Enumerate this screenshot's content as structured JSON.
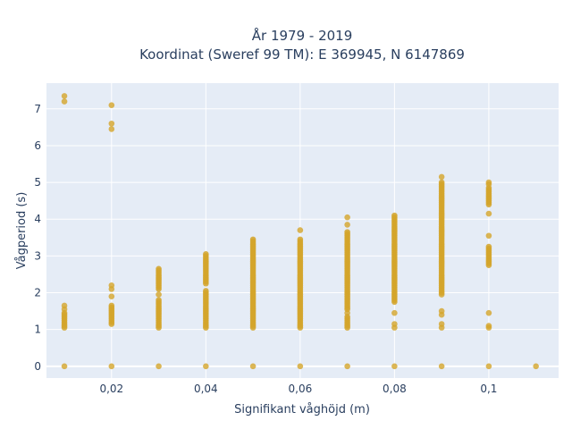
{
  "chart_data": {
    "type": "scatter",
    "title_line1": "År 1979 - 2019",
    "title_line2": "Koordinat (Sweref 99 TM): E 369945, N 6147869",
    "xlabel": "Signifikant våghöjd (m)",
    "ylabel": "Vågperiod (s)",
    "xlim": [
      0.0062,
      0.1148
    ],
    "ylim": [
      -0.32,
      7.7
    ],
    "x_ticks": [
      0.02,
      0.04,
      0.06,
      0.08,
      0.1
    ],
    "x_tick_labels": [
      "0,02",
      "0,04",
      "0,06",
      "0,08",
      "0,1"
    ],
    "y_ticks": [
      0,
      1,
      2,
      3,
      4,
      5,
      6,
      7
    ],
    "y_tick_labels": [
      "0",
      "1",
      "2",
      "3",
      "4",
      "5",
      "6",
      "7"
    ],
    "grid": true,
    "colors": {
      "plot_bg": "#e5ecf6",
      "grid": "#ffffff",
      "marker": "#d4a52a",
      "text": "#2a3f5f"
    },
    "columns": [
      {
        "x": 0.01,
        "ranges": [
          [
            1.05,
            1.45
          ]
        ],
        "points": [
          0,
          1.55,
          1.65,
          7.2,
          7.35
        ]
      },
      {
        "x": 0.02,
        "ranges": [
          [
            1.15,
            1.65
          ]
        ],
        "points": [
          0,
          1.9,
          2.1,
          2.2,
          6.45,
          6.6,
          7.1
        ]
      },
      {
        "x": 0.03,
        "ranges": [
          [
            1.05,
            1.8
          ],
          [
            2.1,
            2.65
          ]
        ],
        "points": [
          0,
          1.95
        ]
      },
      {
        "x": 0.04,
        "ranges": [
          [
            1.05,
            2.05
          ],
          [
            2.25,
            3.05
          ]
        ],
        "points": [
          0
        ]
      },
      {
        "x": 0.05,
        "ranges": [
          [
            1.05,
            3.45
          ]
        ],
        "points": [
          0
        ]
      },
      {
        "x": 0.06,
        "ranges": [
          [
            1.05,
            3.45
          ]
        ],
        "points": [
          0,
          3.7
        ]
      },
      {
        "x": 0.07,
        "ranges": [
          [
            1.05,
            1.35
          ],
          [
            1.55,
            3.65
          ]
        ],
        "points": [
          0,
          1.45,
          3.85,
          4.05
        ]
      },
      {
        "x": 0.08,
        "ranges": [
          [
            1.75,
            4.1
          ]
        ],
        "points": [
          0,
          1.05,
          1.15,
          1.45
        ]
      },
      {
        "x": 0.09,
        "ranges": [
          [
            2.0,
            5.0
          ]
        ],
        "points": [
          0,
          1.05,
          1.15,
          1.4,
          1.5,
          1.95,
          5.15
        ]
      },
      {
        "x": 0.1,
        "ranges": [
          [
            2.75,
            3.25
          ],
          [
            4.4,
            4.85
          ]
        ],
        "points": [
          0,
          1.05,
          1.1,
          1.45,
          3.55,
          4.15,
          4.95,
          5.0
        ]
      },
      {
        "x": 0.11,
        "ranges": [],
        "points": [
          0
        ]
      }
    ]
  }
}
